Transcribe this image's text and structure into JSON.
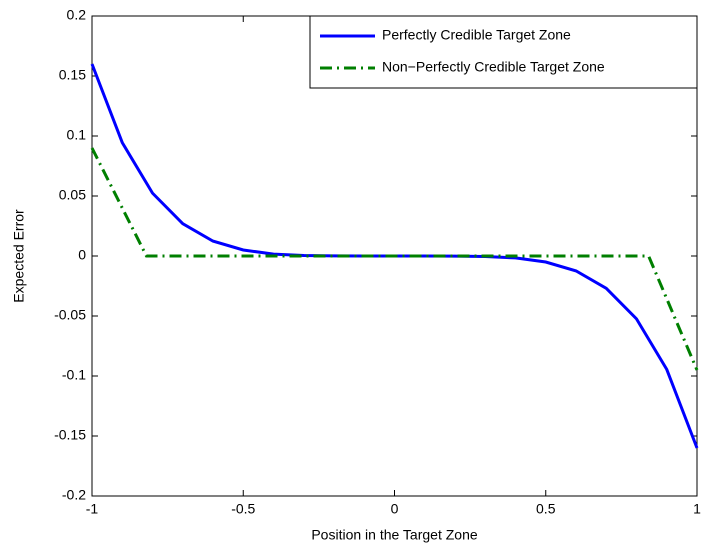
{
  "chart_data": {
    "type": "line",
    "xlabel": "Position in the Target Zone",
    "ylabel": "Expected Error",
    "xlim": [
      -1,
      1
    ],
    "xticks": [
      -1,
      -0.5,
      0,
      0.5,
      1
    ],
    "ylim": [
      -0.2,
      0.2
    ],
    "yticks": [
      -0.2,
      -0.15,
      -0.1,
      -0.05,
      0,
      0.05,
      0.1,
      0.15,
      0.2
    ],
    "legend": "upper right",
    "series": [
      {
        "name": "Perfectly Credible Target Zone",
        "color": "#0000ff",
        "style": "solid",
        "x": [
          -1,
          -0.9,
          -0.8,
          -0.7,
          -0.6,
          -0.5,
          -0.4,
          -0.3,
          -0.2,
          -0.1,
          0,
          0.1,
          0.2,
          0.3,
          0.4,
          0.5,
          0.6,
          0.7,
          0.8,
          0.9,
          1
        ],
        "values": [
          0.16,
          0.0945,
          0.0524,
          0.0269,
          0.0124,
          0.005,
          0.0016,
          0.0004,
          0.0001,
          0,
          0,
          0,
          -0.0001,
          -0.0004,
          -0.0016,
          -0.005,
          -0.0124,
          -0.0269,
          -0.0524,
          -0.0945,
          -0.16
        ]
      },
      {
        "name": "Non−Perfectly Credible Target Zone",
        "color": "#007f00",
        "style": "dashdot",
        "x": [
          -1,
          -0.82,
          0.84,
          1
        ],
        "values": [
          0.09,
          0,
          0,
          -0.095
        ]
      }
    ]
  }
}
